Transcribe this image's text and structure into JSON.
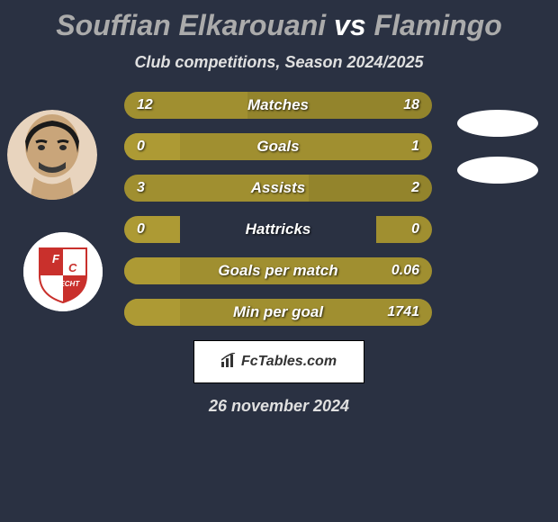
{
  "title": {
    "player1": "Souffian Elkarouani",
    "vs": "vs",
    "player2": "Flamingo"
  },
  "subtitle": "Club competitions, Season 2024/2025",
  "stats": [
    {
      "label": "Matches",
      "left_value": "12",
      "right_value": "18",
      "left_pct": 40,
      "right_pct": 60
    },
    {
      "label": "Goals",
      "left_value": "0",
      "right_value": "1",
      "left_pct": 18,
      "right_pct": 100
    },
    {
      "label": "Assists",
      "left_value": "3",
      "right_value": "2",
      "left_pct": 60,
      "right_pct": 40
    },
    {
      "label": "Hattricks",
      "left_value": "0",
      "right_value": "0",
      "left_pct": 18,
      "right_pct": 18
    },
    {
      "label": "Goals per match",
      "left_value": "",
      "right_value": "0.06",
      "left_pct": 18,
      "right_pct": 100
    },
    {
      "label": "Min per goal",
      "left_value": "",
      "right_value": "1741",
      "left_pct": 18,
      "right_pct": 100
    }
  ],
  "colors": {
    "background": "#2a3142",
    "bar_primary": "#a08f30",
    "bar_secondary": "#8b7a1f",
    "text_title": "#ababab",
    "text_highlight": "#ffffff",
    "text_body": "#e0e0e0"
  },
  "footer": {
    "brand": "FcTables.com",
    "date": "26 november 2024"
  },
  "club": {
    "name": "FC Utrecht",
    "badge_text": "UTRECHT"
  }
}
